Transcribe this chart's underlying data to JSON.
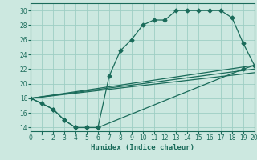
{
  "xlabel": "Humidex (Indice chaleur)",
  "xlim": [
    0,
    20
  ],
  "ylim": [
    13.5,
    31
  ],
  "xticks": [
    0,
    1,
    2,
    3,
    4,
    5,
    6,
    7,
    8,
    9,
    10,
    11,
    12,
    13,
    14,
    15,
    16,
    17,
    18,
    19,
    20
  ],
  "yticks": [
    14,
    16,
    18,
    20,
    22,
    24,
    26,
    28,
    30
  ],
  "background_color": "#cce8e0",
  "grid_color": "#9ecec4",
  "line_color": "#1a6b5a",
  "line1_x": [
    0,
    1,
    2,
    3,
    4,
    5,
    6,
    7,
    8,
    9,
    10,
    11,
    12,
    13,
    14,
    15,
    16,
    17,
    18,
    19,
    20
  ],
  "line1_y": [
    18,
    17.3,
    16.5,
    15,
    14,
    14,
    14,
    21,
    24.5,
    26,
    28,
    28.7,
    28.7,
    30,
    30,
    30,
    30,
    30,
    29,
    25.5,
    22.5
  ],
  "line2_x": [
    0,
    2,
    3,
    4,
    5,
    6,
    19,
    20
  ],
  "line2_y": [
    18,
    16.5,
    15,
    14,
    14,
    14,
    22,
    22.5
  ],
  "line3_x": [
    0,
    20
  ],
  "line3_y": [
    18,
    22.5
  ],
  "line4_x": [
    0,
    20
  ],
  "line4_y": [
    18,
    22
  ],
  "line5_x": [
    0,
    20
  ],
  "line5_y": [
    18,
    21.5
  ]
}
